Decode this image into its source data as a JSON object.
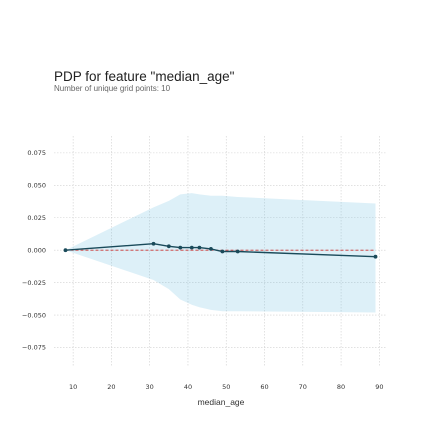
{
  "chart_data": {
    "type": "line",
    "title": "PDP for feature \"median_age\"",
    "subtitle": "Number of unique grid points: 10",
    "xlabel": "median_age",
    "ylabel": "",
    "xlim": [
      5,
      92
    ],
    "ylim": [
      -0.09,
      0.088
    ],
    "x_ticks": [
      10,
      20,
      30,
      40,
      50,
      60,
      70,
      80,
      90
    ],
    "x_tick_labels": [
      "10",
      "20",
      "30",
      "40",
      "50",
      "60",
      "70",
      "80",
      "90"
    ],
    "y_ticks": [
      0.075,
      0.05,
      0.025,
      0.0,
      -0.025,
      -0.05,
      -0.075
    ],
    "y_tick_labels": [
      "0.075",
      "0.050",
      "0.025",
      "0.000",
      "−0.025",
      "−0.050",
      "−0.075"
    ],
    "grid": true,
    "series": [
      {
        "x": [
          8,
          31,
          35,
          38,
          41,
          43,
          46,
          49,
          53,
          89
        ],
        "y": [
          0.0,
          0.005,
          0.003,
          0.002,
          0.002,
          0.002,
          0.001,
          -0.001,
          -0.001,
          -0.005
        ],
        "color": "#1a4a5a"
      }
    ],
    "band": {
      "upper": [
        0.0,
        0.033,
        0.038,
        0.043,
        0.044,
        0.043,
        0.042,
        0.042,
        0.041,
        0.036
      ],
      "lower": [
        0.0,
        -0.023,
        -0.03,
        -0.038,
        -0.042,
        -0.044,
        -0.046,
        -0.047,
        -0.047,
        -0.048
      ],
      "color": "#66bbdd"
    },
    "reference_line": {
      "y": 0.0,
      "color": "#cc3333",
      "style": "dashed"
    }
  }
}
